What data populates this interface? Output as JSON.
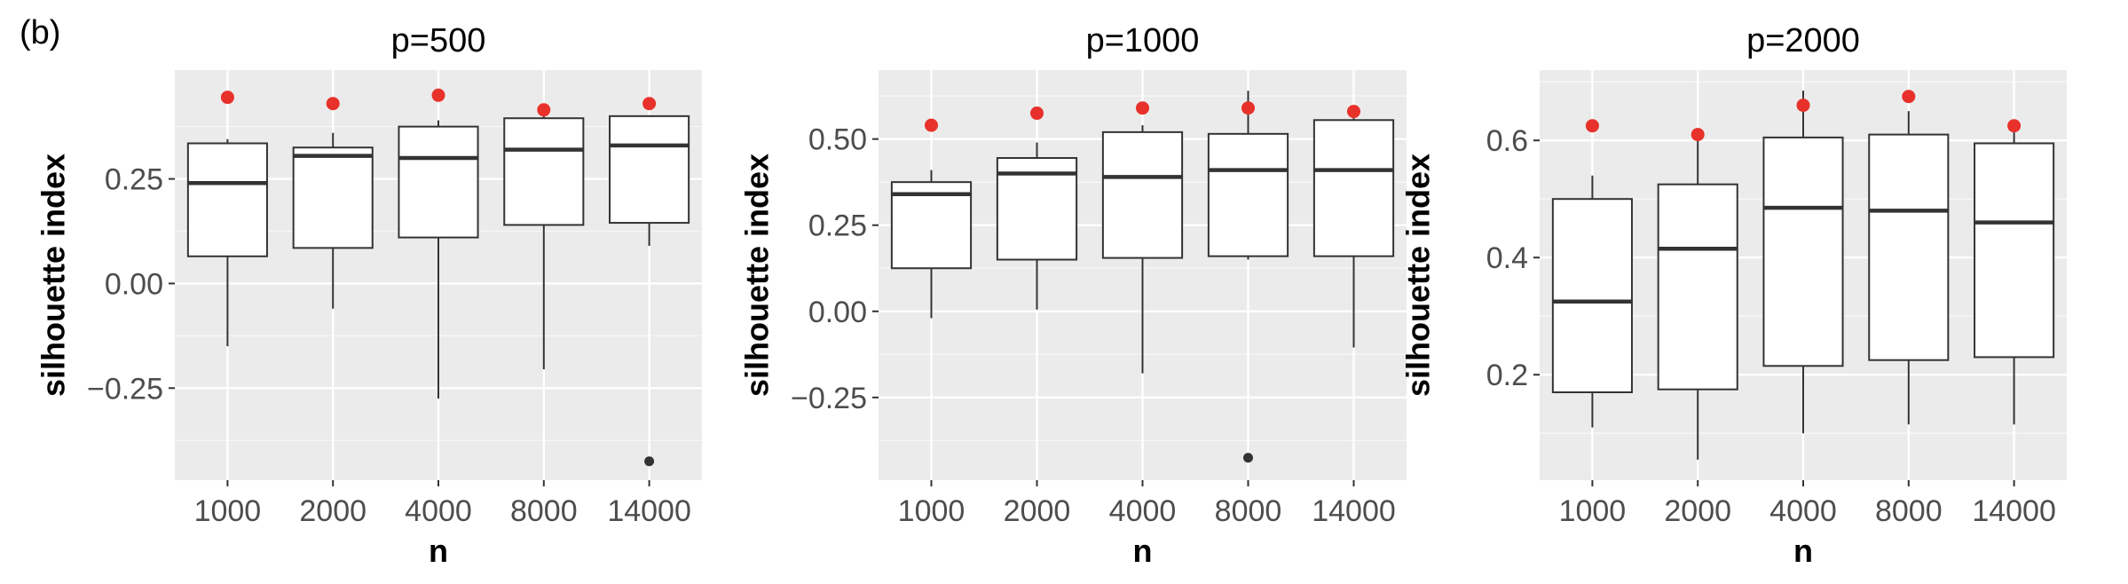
{
  "figure_label": "(b)",
  "chart_data": [
    {
      "type": "box",
      "title": "p=500",
      "xlabel": "n",
      "ylabel": "silhouette index",
      "categories": [
        "1000",
        "2000",
        "4000",
        "8000",
        "14000"
      ],
      "ylim": [
        -0.47,
        0.51
      ],
      "yticks": [
        -0.25,
        0.0,
        0.25
      ],
      "ytick_labels": [
        "−0.25",
        "0.00",
        "0.25"
      ],
      "grid": true,
      "boxes": [
        {
          "lower_whisker": -0.15,
          "q1": 0.065,
          "median": 0.24,
          "q3": 0.335,
          "upper_whisker": 0.345,
          "outliers": []
        },
        {
          "lower_whisker": -0.06,
          "q1": 0.085,
          "median": 0.305,
          "q3": 0.325,
          "upper_whisker": 0.36,
          "outliers": []
        },
        {
          "lower_whisker": -0.275,
          "q1": 0.11,
          "median": 0.3,
          "q3": 0.375,
          "upper_whisker": 0.39,
          "outliers": []
        },
        {
          "lower_whisker": -0.205,
          "q1": 0.14,
          "median": 0.32,
          "q3": 0.395,
          "upper_whisker": 0.4,
          "outliers": []
        },
        {
          "lower_whisker": 0.09,
          "q1": 0.145,
          "median": 0.33,
          "q3": 0.4,
          "upper_whisker": 0.4,
          "outliers": [
            -0.425
          ]
        }
      ],
      "highlight_points": [
        0.445,
        0.43,
        0.45,
        0.415,
        0.43
      ],
      "highlight_color": "#e8312a"
    },
    {
      "type": "box",
      "title": "p=1000",
      "xlabel": "n",
      "ylabel": "silhouette index",
      "categories": [
        "1000",
        "2000",
        "4000",
        "8000",
        "14000"
      ],
      "ylim": [
        -0.49,
        0.7
      ],
      "yticks": [
        -0.25,
        0.0,
        0.25,
        0.5
      ],
      "ytick_labels": [
        "−0.25",
        "0.00",
        "0.25",
        "0.50"
      ],
      "grid": true,
      "boxes": [
        {
          "lower_whisker": -0.02,
          "q1": 0.125,
          "median": 0.34,
          "q3": 0.375,
          "upper_whisker": 0.41,
          "outliers": []
        },
        {
          "lower_whisker": 0.005,
          "q1": 0.15,
          "median": 0.4,
          "q3": 0.445,
          "upper_whisker": 0.49,
          "outliers": []
        },
        {
          "lower_whisker": -0.18,
          "q1": 0.155,
          "median": 0.39,
          "q3": 0.52,
          "upper_whisker": 0.54,
          "outliers": []
        },
        {
          "lower_whisker": 0.15,
          "q1": 0.16,
          "median": 0.41,
          "q3": 0.515,
          "upper_whisker": 0.64,
          "outliers": [
            -0.425
          ]
        },
        {
          "lower_whisker": -0.105,
          "q1": 0.16,
          "median": 0.41,
          "q3": 0.555,
          "upper_whisker": 0.59,
          "outliers": []
        }
      ],
      "highlight_points": [
        0.54,
        0.575,
        0.59,
        0.59,
        0.58
      ],
      "highlight_color": "#e8312a"
    },
    {
      "type": "box",
      "title": "p=2000",
      "xlabel": "n",
      "ylabel": "silhouette index",
      "categories": [
        "1000",
        "2000",
        "4000",
        "8000",
        "14000"
      ],
      "ylim": [
        0.02,
        0.72
      ],
      "yticks": [
        0.2,
        0.4,
        0.6
      ],
      "ytick_labels": [
        "0.2",
        "0.4",
        "0.6"
      ],
      "grid": true,
      "boxes": [
        {
          "lower_whisker": 0.11,
          "q1": 0.17,
          "median": 0.325,
          "q3": 0.5,
          "upper_whisker": 0.54,
          "outliers": []
        },
        {
          "lower_whisker": 0.055,
          "q1": 0.175,
          "median": 0.415,
          "q3": 0.525,
          "upper_whisker": 0.6,
          "outliers": []
        },
        {
          "lower_whisker": 0.1,
          "q1": 0.215,
          "median": 0.485,
          "q3": 0.605,
          "upper_whisker": 0.685,
          "outliers": []
        },
        {
          "lower_whisker": 0.115,
          "q1": 0.225,
          "median": 0.48,
          "q3": 0.61,
          "upper_whisker": 0.65,
          "outliers": []
        },
        {
          "lower_whisker": 0.115,
          "q1": 0.23,
          "median": 0.46,
          "q3": 0.595,
          "upper_whisker": 0.625,
          "outliers": []
        }
      ],
      "highlight_points": [
        0.625,
        0.61,
        0.66,
        0.675,
        0.625
      ],
      "highlight_color": "#e8312a"
    }
  ]
}
